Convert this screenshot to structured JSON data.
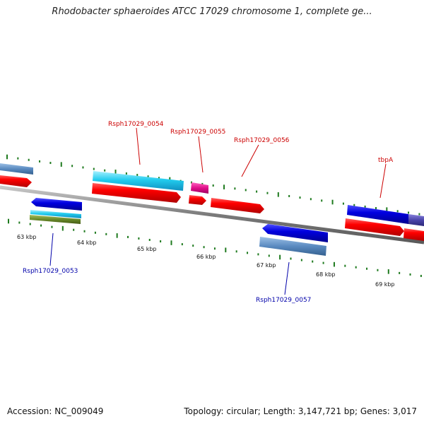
{
  "title": "Rhodobacter sphaeroides ATCC 17029 chromosome 1, complete ge...",
  "accession_text": "Accession: NC_009049",
  "summary_text": "Topology: circular; Length: 3,147,721 bp; Genes: 3,017",
  "colors": {
    "backbone": "#808080",
    "tick": "#1e7a1e",
    "cds_red": "#ff0000",
    "gene_blue": "#0000e0",
    "gene_steel": "#5a8ac0",
    "gene_cyan": "#22ccee",
    "gene_magenta": "#e0108a",
    "gene_olive": "#6a8a2a",
    "gene_indigo": "#4a44aa",
    "label_forward": "#cc0000",
    "label_reverse": "#0000aa"
  },
  "scale": {
    "labels": [
      "63 kbp",
      "64 kbp",
      "65 kbp",
      "66 kbp",
      "67 kbp",
      "68 kbp",
      "69 kbp"
    ]
  },
  "gene_labels": {
    "g0053": "Rsph17029_0053",
    "g0054": "Rsph17029_0054",
    "g0055": "Rsph17029_0055",
    "g0056": "Rsph17029_0056",
    "g0057": "Rsph17029_0057",
    "tbpA": "tbpA"
  }
}
